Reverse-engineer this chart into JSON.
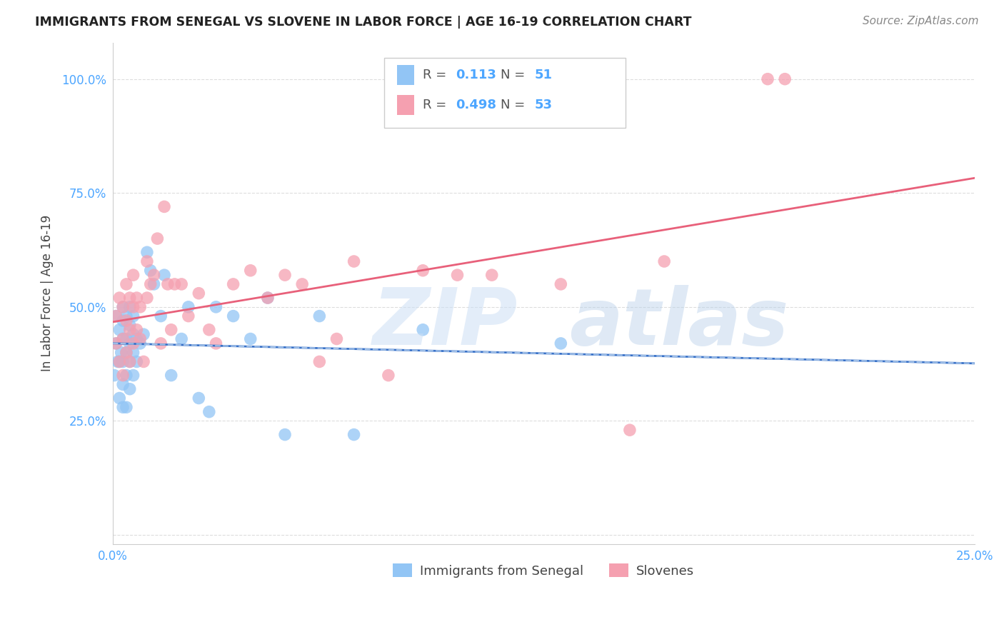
{
  "title": "IMMIGRANTS FROM SENEGAL VS SLOVENE IN LABOR FORCE | AGE 16-19 CORRELATION CHART",
  "source": "Source: ZipAtlas.com",
  "ylabel": "In Labor Force | Age 16-19",
  "xlim": [
    0.0,
    0.25
  ],
  "ylim": [
    -0.02,
    1.08
  ],
  "xticks": [
    0.0,
    0.05,
    0.1,
    0.15,
    0.2,
    0.25
  ],
  "xticklabels": [
    "0.0%",
    "",
    "",
    "",
    "",
    "25.0%"
  ],
  "yticks": [
    0.0,
    0.25,
    0.5,
    0.75,
    1.0
  ],
  "yticklabels": [
    "",
    "25.0%",
    "50.0%",
    "75.0%",
    "100.0%"
  ],
  "r_senegal": 0.113,
  "n_senegal": 51,
  "r_slovene": 0.498,
  "n_slovene": 53,
  "senegal_color": "#92c5f5",
  "slovene_color": "#f5a0b0",
  "senegal_line_color": "#3a72c8",
  "slovene_line_color": "#e8607a",
  "senegal_line_dash": "#a0c0e8",
  "background_color": "#ffffff",
  "grid_color": "#dddddd",
  "senegal_x": [
    0.0005,
    0.001,
    0.001,
    0.0015,
    0.002,
    0.002,
    0.002,
    0.0025,
    0.003,
    0.003,
    0.003,
    0.003,
    0.003,
    0.003,
    0.004,
    0.004,
    0.004,
    0.004,
    0.004,
    0.005,
    0.005,
    0.005,
    0.005,
    0.005,
    0.006,
    0.006,
    0.006,
    0.006,
    0.007,
    0.007,
    0.008,
    0.009,
    0.01,
    0.011,
    0.012,
    0.014,
    0.015,
    0.017,
    0.02,
    0.022,
    0.025,
    0.028,
    0.03,
    0.035,
    0.04,
    0.045,
    0.05,
    0.06,
    0.07,
    0.09,
    0.13
  ],
  "senegal_y": [
    0.35,
    0.42,
    0.48,
    0.38,
    0.3,
    0.38,
    0.45,
    0.4,
    0.28,
    0.33,
    0.38,
    0.43,
    0.47,
    0.5,
    0.28,
    0.35,
    0.4,
    0.43,
    0.48,
    0.32,
    0.38,
    0.42,
    0.46,
    0.5,
    0.35,
    0.4,
    0.44,
    0.48,
    0.38,
    0.43,
    0.42,
    0.44,
    0.62,
    0.58,
    0.55,
    0.48,
    0.57,
    0.35,
    0.43,
    0.5,
    0.3,
    0.27,
    0.5,
    0.48,
    0.43,
    0.52,
    0.22,
    0.48,
    0.22,
    0.45,
    0.42
  ],
  "slovene_x": [
    0.001,
    0.001,
    0.002,
    0.002,
    0.003,
    0.003,
    0.003,
    0.004,
    0.004,
    0.004,
    0.005,
    0.005,
    0.005,
    0.006,
    0.006,
    0.006,
    0.007,
    0.007,
    0.008,
    0.008,
    0.009,
    0.01,
    0.01,
    0.011,
    0.012,
    0.013,
    0.014,
    0.015,
    0.016,
    0.017,
    0.018,
    0.02,
    0.022,
    0.025,
    0.028,
    0.03,
    0.035,
    0.04,
    0.045,
    0.05,
    0.055,
    0.06,
    0.065,
    0.07,
    0.08,
    0.09,
    0.1,
    0.11,
    0.13,
    0.15,
    0.16,
    0.19,
    0.195
  ],
  "slovene_y": [
    0.42,
    0.48,
    0.38,
    0.52,
    0.35,
    0.43,
    0.5,
    0.4,
    0.47,
    0.55,
    0.38,
    0.45,
    0.52,
    0.42,
    0.5,
    0.57,
    0.45,
    0.52,
    0.43,
    0.5,
    0.38,
    0.52,
    0.6,
    0.55,
    0.57,
    0.65,
    0.42,
    0.72,
    0.55,
    0.45,
    0.55,
    0.55,
    0.48,
    0.53,
    0.45,
    0.42,
    0.55,
    0.58,
    0.52,
    0.57,
    0.55,
    0.38,
    0.43,
    0.6,
    0.35,
    0.58,
    0.57,
    0.57,
    0.55,
    0.23,
    0.6,
    1.0,
    1.0
  ],
  "tick_color": "#4da6ff",
  "tick_fontsize": 12
}
